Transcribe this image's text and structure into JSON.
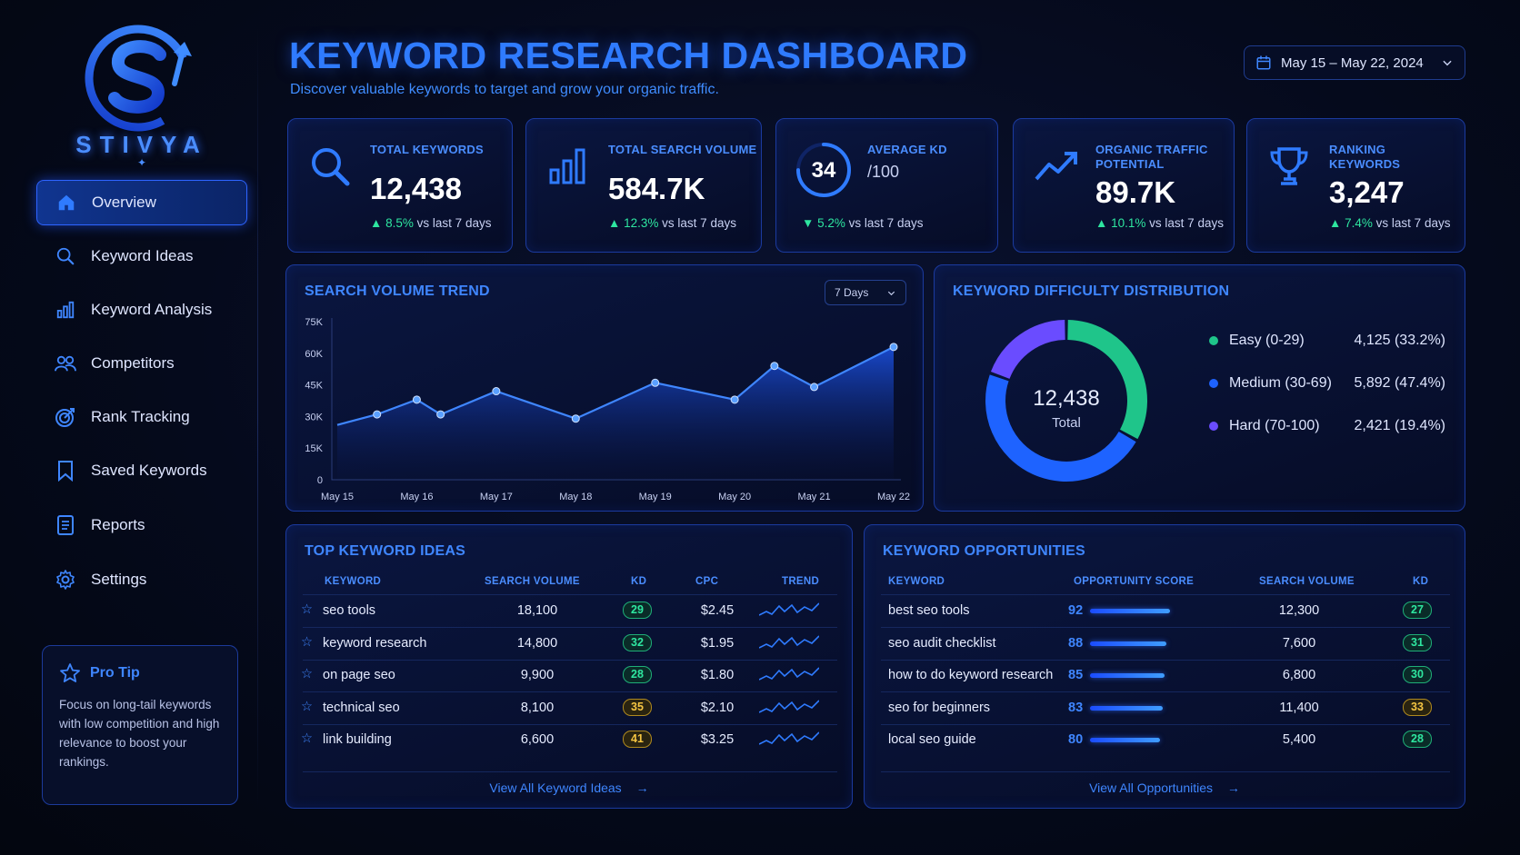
{
  "brand": {
    "name": "STIVYA"
  },
  "nav": [
    {
      "label": "Overview",
      "icon": "home-icon",
      "active": true
    },
    {
      "label": "Keyword Ideas",
      "icon": "search-icon"
    },
    {
      "label": "Keyword Analysis",
      "icon": "bar-chart-icon"
    },
    {
      "label": "Competitors",
      "icon": "users-icon"
    },
    {
      "label": "Rank Tracking",
      "icon": "target-icon"
    },
    {
      "label": "Saved Keywords",
      "icon": "bookmark-icon"
    },
    {
      "label": "Reports",
      "icon": "document-icon"
    },
    {
      "label": "Settings",
      "icon": "gear-icon"
    }
  ],
  "protip": {
    "title": "Pro Tip",
    "text": "Focus on long-tail keywords with low competition and high relevance to boost your rankings."
  },
  "header": {
    "title": "KEYWORD RESEARCH DASHBOARD",
    "subtitle": "Discover valuable keywords to target and grow your organic traffic.",
    "date_range": "May 15 – May 22, 2024"
  },
  "kpis": [
    {
      "label": "TOTAL KEYWORDS",
      "value": "12,438",
      "delta": "8.5%",
      "direction": "up",
      "compare": "vs last 7 days",
      "icon": "search-icon"
    },
    {
      "label": "TOTAL SEARCH VOLUME",
      "value": "584.7K",
      "delta": "12.3%",
      "direction": "up",
      "compare": "vs last 7 days",
      "icon": "bar-chart-icon"
    },
    {
      "label": "AVERAGE KD",
      "value": "34",
      "suffix": "/100",
      "delta": "5.2%",
      "direction": "down",
      "compare": "vs last 7 days",
      "icon": "gauge-icon",
      "gauge_fraction": 0.34
    },
    {
      "label_line1": "ORGANIC TRAFFIC",
      "label_line2": "POTENTIAL",
      "value": "89.7K",
      "delta": "10.1%",
      "direction": "up",
      "compare": "vs last 7 days",
      "icon": "trend-up-icon"
    },
    {
      "label_line1": "RANKING",
      "label_line2": "KEYWORDS",
      "value": "3,247",
      "delta": "7.4%",
      "direction": "up",
      "compare": "vs last 7 days",
      "icon": "trophy-icon"
    }
  ],
  "trend": {
    "title": "SEARCH VOLUME TREND",
    "range": "7 Days"
  },
  "chart_data": [
    {
      "type": "area",
      "title": "SEARCH VOLUME TREND",
      "x": [
        "May 15",
        "May 16",
        "May 17",
        "May 18",
        "May 19",
        "May 20",
        "May 21",
        "May 22"
      ],
      "points": [
        {
          "x": "May 15",
          "y": 26000
        },
        {
          "x": "May 15.5",
          "y": 31000
        },
        {
          "x": "May 16",
          "y": 38000
        },
        {
          "x": "May 16.3",
          "y": 31000
        },
        {
          "x": "May 17",
          "y": 42000
        },
        {
          "x": "May 18",
          "y": 29000
        },
        {
          "x": "May 19",
          "y": 46000
        },
        {
          "x": "May 20",
          "y": 38000
        },
        {
          "x": "May 20.5",
          "y": 54000
        },
        {
          "x": "May 21",
          "y": 44000
        },
        {
          "x": "May 22",
          "y": 63000
        }
      ],
      "y_ticks": [
        "0",
        "15K",
        "30K",
        "45K",
        "60K",
        "75K"
      ],
      "ylim": [
        0,
        75000
      ],
      "color": "#2f6bff"
    },
    {
      "type": "pie",
      "title": "KEYWORD DIFFICULTY DISTRIBUTION",
      "center_value": "12,438",
      "center_label": "Total",
      "slices": [
        {
          "name": "Easy (0-29)",
          "value": 4125,
          "display": "4,125 (33.2%)",
          "color": "#1fc58a"
        },
        {
          "name": "Medium (30-69)",
          "value": 5892,
          "display": "5,892 (47.4%)",
          "color": "#1e63ff"
        },
        {
          "name": "Hard (70-100)",
          "value": 2421,
          "display": "2,421 (19.4%)",
          "color": "#6a4cff"
        }
      ]
    }
  ],
  "ideas": {
    "title": "TOP KEYWORD IDEAS",
    "columns": [
      "KEYWORD",
      "SEARCH VOLUME",
      "KD",
      "CPC",
      "TREND"
    ],
    "rows": [
      {
        "keyword": "seo tools",
        "volume": "18,100",
        "kd": "29",
        "kd_level": "green",
        "cpc": "$2.45"
      },
      {
        "keyword": "keyword research",
        "volume": "14,800",
        "kd": "32",
        "kd_level": "green",
        "cpc": "$1.95"
      },
      {
        "keyword": "on page seo",
        "volume": "9,900",
        "kd": "28",
        "kd_level": "green",
        "cpc": "$1.80"
      },
      {
        "keyword": "technical seo",
        "volume": "8,100",
        "kd": "35",
        "kd_level": "yellow",
        "cpc": "$2.10"
      },
      {
        "keyword": "link building",
        "volume": "6,600",
        "kd": "41",
        "kd_level": "yellow",
        "cpc": "$3.25"
      }
    ],
    "link": "View All Keyword Ideas"
  },
  "opps": {
    "title": "KEYWORD OPPORTUNITIES",
    "columns": [
      "KEYWORD",
      "OPPORTUNITY SCORE",
      "SEARCH VOLUME",
      "KD"
    ],
    "rows": [
      {
        "keyword": "best seo tools",
        "score": "92",
        "volume": "12,300",
        "kd": "27",
        "kd_level": "green"
      },
      {
        "keyword": "seo audit checklist",
        "score": "88",
        "volume": "7,600",
        "kd": "31",
        "kd_level": "green"
      },
      {
        "keyword": "how to do keyword research",
        "score": "85",
        "volume": "6,800",
        "kd": "30",
        "kd_level": "green"
      },
      {
        "keyword": "seo for beginners",
        "score": "83",
        "volume": "11,400",
        "kd": "33",
        "kd_level": "yellow"
      },
      {
        "keyword": "local seo guide",
        "score": "80",
        "volume": "5,400",
        "kd": "28",
        "kd_level": "green"
      }
    ],
    "link": "View All Opportunities"
  },
  "colors": {
    "accent": "#2f7bff",
    "positive": "#2ee6a0",
    "warning": "#f5c542",
    "background": "#050a1c"
  }
}
